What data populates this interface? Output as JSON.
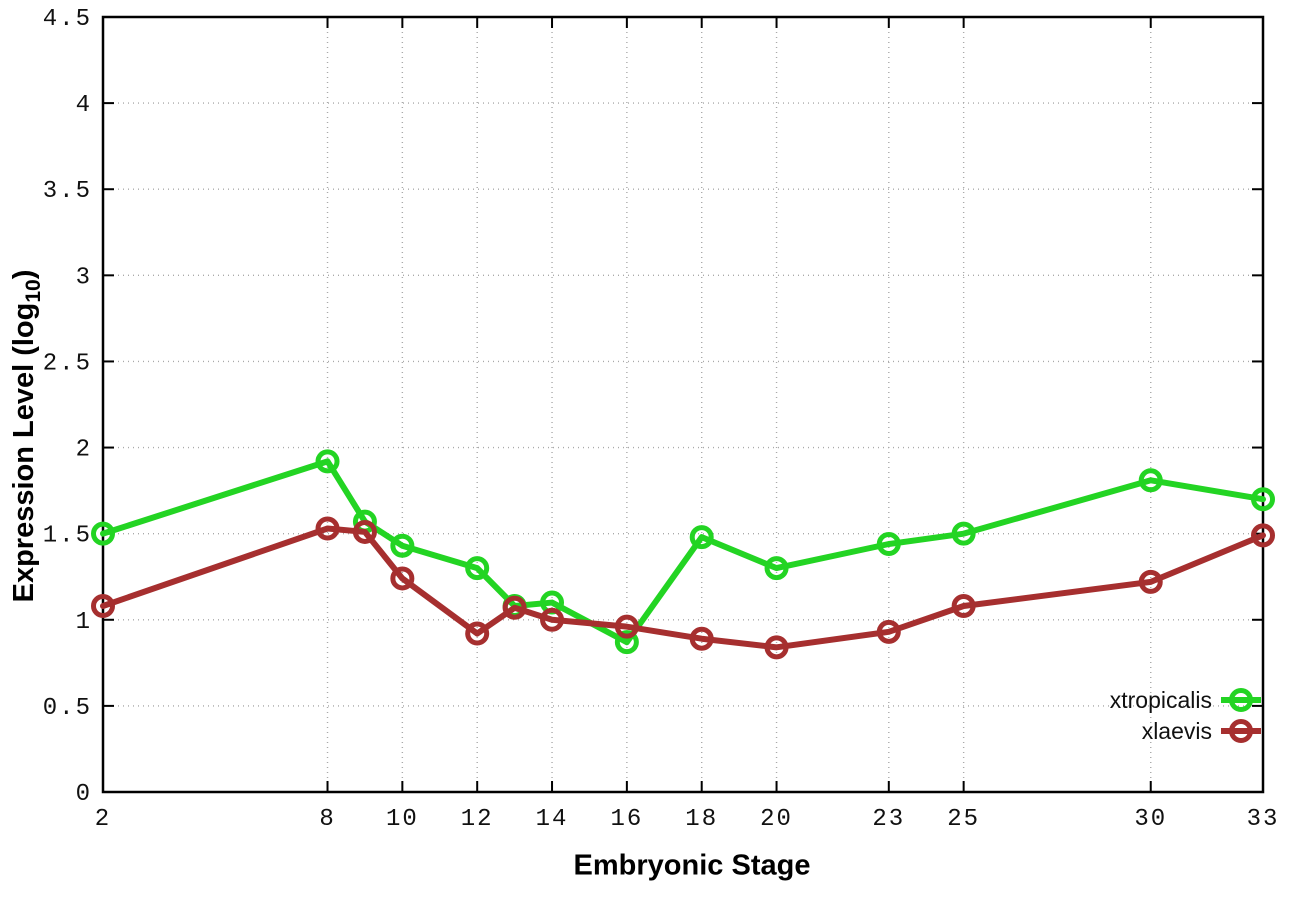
{
  "figure": {
    "xlabel": "Embryonic Stage",
    "ylabel_main": "Expression Level (log",
    "ylabel_sub": "10",
    "ylabel_close": ")"
  },
  "chart_data": {
    "type": "line",
    "title": "",
    "xlabel": "Embryonic Stage",
    "ylabel": "Expression Level (log10)",
    "x": [
      2,
      8,
      9,
      10,
      12,
      13,
      14,
      16,
      18,
      20,
      23,
      25,
      30,
      33
    ],
    "xticks": [
      2,
      8,
      10,
      12,
      14,
      16,
      18,
      20,
      23,
      25,
      30,
      33
    ],
    "yticks": [
      0,
      0.5,
      1,
      1.5,
      2,
      2.5,
      3,
      3.5,
      4,
      4.5
    ],
    "xlim": [
      2,
      33
    ],
    "ylim": [
      0,
      4.5
    ],
    "grid": true,
    "legend_position": "bottom-right",
    "axis_color": "#000000",
    "grid_color": "#a9a9a9",
    "marker": "open-circle",
    "series": [
      {
        "name": "xtropicalis",
        "color": "#23d423",
        "values": [
          1.5,
          1.92,
          1.57,
          1.43,
          1.3,
          1.08,
          1.1,
          0.87,
          1.48,
          1.3,
          1.44,
          1.5,
          1.81,
          1.7
        ]
      },
      {
        "name": "xlaevis",
        "color": "#a62f2f",
        "values": [
          1.08,
          1.53,
          1.51,
          1.24,
          0.92,
          1.07,
          1.0,
          0.96,
          0.89,
          0.84,
          0.93,
          1.08,
          1.22,
          1.49
        ]
      }
    ]
  }
}
